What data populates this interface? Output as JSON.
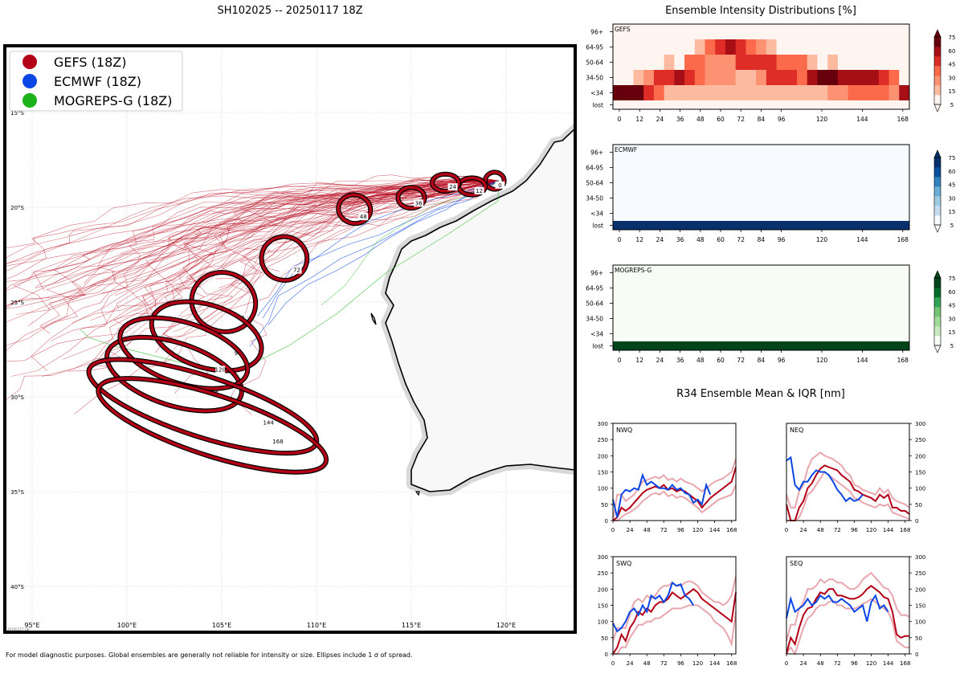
{
  "page": {
    "title": "SH102025 -- 20250117 18Z",
    "footer": "For model diagnostic purposes. Global ensembles are generally not reliable for intensity or size. Ellipses include 1 σ of spread.",
    "small_credit": "20250117 sat"
  },
  "colors": {
    "gefs": "#b40016",
    "ecmwf": "#0a46e6",
    "mogreps": "#1bb21b",
    "land": "#f7f7f7",
    "gefs_iqr": "#e8a6ad"
  },
  "chart_data": [
    {
      "type": "map",
      "name": "track_map",
      "lon_ticks": [
        "95°E",
        "100°E",
        "105°E",
        "110°E",
        "115°E",
        "120°E"
      ],
      "lat_ticks": [
        "15°S",
        "20°S",
        "25°S",
        "30°S",
        "35°S",
        "40°S"
      ],
      "legend": [
        {
          "label": "GEFS (18Z)",
          "color": "#b40016"
        },
        {
          "label": "ECMWF (18Z)",
          "color": "#0a46e6"
        },
        {
          "label": "MOGREPS-G (18Z)",
          "color": "#1bb21b"
        }
      ],
      "ellipses": [
        {
          "hour": "0",
          "lon": 119.4,
          "lat": -18.6,
          "rx": 0.5,
          "ry": 0.45
        },
        {
          "hour": "12",
          "lon": 118.2,
          "lat": -18.9,
          "rx": 0.7,
          "ry": 0.45
        },
        {
          "hour": "24",
          "lon": 116.8,
          "lat": -18.7,
          "rx": 0.7,
          "ry": 0.45
        },
        {
          "hour": "36",
          "lon": 115.0,
          "lat": -19.5,
          "rx": 0.7,
          "ry": 0.55
        },
        {
          "hour": "48",
          "lon": 112.0,
          "lat": -20.1,
          "rx": 0.85,
          "ry": 0.75
        },
        {
          "hour": "72",
          "lon": 108.3,
          "lat": -22.7,
          "rx": 1.2,
          "ry": 1.15
        },
        {
          "hour": "96",
          "lon": 105.1,
          "lat": -25.0,
          "rx": 1.7,
          "ry": 1.55
        },
        {
          "hour": "96",
          "lon": 104.2,
          "lat": -26.8,
          "rx": 3.0,
          "ry": 1.65
        },
        {
          "hour": "144",
          "lon": 102.5,
          "lat": -28.8,
          "rx": 3.7,
          "ry": 1.65
        },
        {
          "hour": "120",
          "lon": 103.0,
          "lat": -27.7,
          "rx": 3.5,
          "ry": 1.6
        },
        {
          "hour": "144",
          "lon": 104.0,
          "lat": -30.5,
          "rx": 6.3,
          "ry": 1.6
        },
        {
          "hour": "168",
          "lon": 104.5,
          "lat": -31.5,
          "rx": 6.3,
          "ry": 1.6
        }
      ]
    },
    {
      "type": "heatmap",
      "name": "GEFS",
      "title": "Ensemble Intensity Distributions [%]",
      "rows": [
        "96+",
        "64-95",
        "50-64",
        "34-50",
        "<34",
        "lost"
      ],
      "x_ticks": [
        0,
        12,
        24,
        36,
        48,
        60,
        72,
        84,
        96,
        120,
        144,
        168
      ],
      "colorbar_ticks": [
        75,
        60,
        45,
        30,
        15,
        5
      ],
      "colorbar_colors": [
        "#fff5f0",
        "#fcbba1",
        "#fc9272",
        "#fb6a4a",
        "#de2d26",
        "#a50f15",
        "#67000d"
      ],
      "values": [
        [
          0,
          0,
          0,
          0,
          0,
          0,
          0,
          0,
          0,
          0,
          0,
          0,
          0,
          0,
          0,
          0,
          0,
          0,
          0,
          0,
          0,
          0,
          0,
          0,
          0,
          0,
          0,
          0,
          0
        ],
        [
          0,
          0,
          0,
          0,
          0,
          0,
          0,
          0,
          10,
          30,
          45,
          60,
          45,
          30,
          20,
          10,
          0,
          0,
          0,
          0,
          0,
          0,
          0,
          0,
          0,
          0,
          0,
          0,
          0
        ],
        [
          0,
          0,
          0,
          0,
          0,
          10,
          0,
          35,
          30,
          20,
          20,
          20,
          50,
          50,
          50,
          50,
          40,
          40,
          30,
          10,
          0,
          10,
          0,
          0,
          0,
          0,
          0,
          0,
          0
        ],
        [
          0,
          0,
          10,
          20,
          55,
          55,
          70,
          55,
          30,
          20,
          20,
          20,
          10,
          10,
          20,
          50,
          50,
          50,
          40,
          60,
          75,
          75,
          60,
          60,
          60,
          60,
          50,
          40,
          0
        ],
        [
          75,
          75,
          75,
          55,
          40,
          5,
          5,
          5,
          5,
          5,
          5,
          5,
          5,
          5,
          5,
          5,
          5,
          5,
          5,
          10,
          10,
          20,
          20,
          30,
          30,
          40,
          40,
          20,
          60
        ],
        [
          0,
          0,
          0,
          0,
          0,
          0,
          0,
          0,
          0,
          0,
          0,
          0,
          0,
          0,
          0,
          0,
          0,
          0,
          0,
          0,
          0,
          0,
          0,
          0,
          0,
          0,
          0,
          0,
          0
        ]
      ]
    },
    {
      "type": "heatmap",
      "name": "ECMWF",
      "rows": [
        "96+",
        "64-95",
        "50-64",
        "34-50",
        "<34",
        "lost"
      ],
      "x_ticks": [
        0,
        12,
        24,
        36,
        48,
        60,
        72,
        84,
        96,
        120,
        144,
        168
      ],
      "colorbar_ticks": [
        75,
        60,
        45,
        30,
        15,
        5
      ],
      "colorbar_colors": [
        "#f7fbff",
        "#c6dbef",
        "#9ecae1",
        "#6baed6",
        "#3182bd",
        "#08519c",
        "#08306b"
      ],
      "values": [
        [
          0
        ],
        [
          0
        ],
        [
          0
        ],
        [
          0
        ],
        [
          0
        ],
        [
          100
        ]
      ]
    },
    {
      "type": "heatmap",
      "name": "MOGREPS-G",
      "rows": [
        "96+",
        "64-95",
        "50-64",
        "34-50",
        "<34",
        "lost"
      ],
      "x_ticks": [
        0,
        12,
        24,
        36,
        48,
        60,
        72,
        84,
        96,
        120,
        144,
        168
      ],
      "colorbar_ticks": [
        75,
        60,
        45,
        30,
        15,
        5
      ],
      "colorbar_colors": [
        "#f7fcf5",
        "#c7e9c0",
        "#a1d99b",
        "#74c476",
        "#31a354",
        "#006d2c",
        "#00441b"
      ],
      "values": [
        [
          0
        ],
        [
          0
        ],
        [
          0
        ],
        [
          0
        ],
        [
          0
        ],
        [
          100
        ]
      ]
    },
    {
      "type": "line",
      "title": "R34 Ensemble Mean & IQR [nm]",
      "x_ticks": [
        0,
        24,
        48,
        72,
        96,
        120,
        144,
        168
      ],
      "y_ticks": [
        0,
        50,
        100,
        150,
        200,
        250,
        300
      ],
      "ylim": [
        0,
        300
      ],
      "xlim": [
        0,
        174
      ],
      "panels": [
        {
          "name": "NWQ",
          "hours": [
            0,
            6,
            12,
            18,
            24,
            30,
            36,
            42,
            48,
            54,
            60,
            66,
            72,
            78,
            84,
            90,
            96,
            102,
            108,
            114,
            120,
            126,
            132,
            138,
            144,
            150,
            156,
            162,
            168,
            174
          ],
          "gefs_mean": [
            0,
            10,
            40,
            30,
            40,
            55,
            70,
            85,
            95,
            100,
            105,
            100,
            110,
            95,
            100,
            90,
            95,
            90,
            80,
            70,
            60,
            40,
            55,
            70,
            80,
            90,
            100,
            110,
            120,
            165
          ],
          "gefs_q1": [
            0,
            0,
            10,
            20,
            25,
            35,
            45,
            60,
            70,
            80,
            85,
            80,
            90,
            75,
            80,
            70,
            75,
            70,
            60,
            50,
            40,
            25,
            35,
            45,
            55,
            65,
            70,
            75,
            80,
            110
          ],
          "gefs_q3": [
            0,
            80,
            80,
            60,
            70,
            80,
            100,
            120,
            125,
            130,
            135,
            130,
            140,
            125,
            130,
            120,
            130,
            120,
            115,
            110,
            100,
            90,
            100,
            110,
            120,
            125,
            130,
            140,
            150,
            190
          ],
          "ecmwf": [
            65,
            10,
            80,
            95,
            90,
            100,
            95,
            140,
            110,
            120,
            110,
            100,
            100,
            95,
            110,
            95,
            100,
            85,
            80,
            55,
            65,
            50,
            110,
            80
          ]
        },
        {
          "name": "NEQ",
          "hours": [
            0,
            6,
            12,
            18,
            24,
            30,
            36,
            42,
            48,
            54,
            60,
            66,
            72,
            78,
            84,
            90,
            96,
            102,
            108,
            114,
            120,
            126,
            132,
            138,
            144,
            150,
            156,
            162,
            168,
            174
          ],
          "gefs_mean": [
            50,
            0,
            0,
            40,
            60,
            100,
            115,
            140,
            160,
            170,
            165,
            160,
            155,
            140,
            130,
            120,
            95,
            90,
            80,
            75,
            70,
            60,
            80,
            70,
            80,
            40,
            40,
            30,
            30,
            20
          ],
          "gefs_q1": [
            0,
            0,
            0,
            10,
            40,
            80,
            90,
            110,
            130,
            150,
            140,
            130,
            120,
            110,
            100,
            90,
            70,
            65,
            55,
            50,
            45,
            40,
            50,
            45,
            50,
            25,
            20,
            15,
            10,
            5
          ],
          "gefs_q3": [
            80,
            40,
            40,
            90,
            110,
            160,
            190,
            200,
            210,
            200,
            195,
            190,
            180,
            170,
            150,
            140,
            110,
            105,
            95,
            90,
            85,
            80,
            100,
            85,
            95,
            70,
            60,
            55,
            50,
            40
          ],
          "ecmwf": [
            185,
            195,
            110,
            95,
            120,
            120,
            140,
            155,
            150,
            150,
            140,
            120,
            95,
            80,
            60,
            70,
            60,
            65,
            80
          ]
        },
        {
          "name": "SWQ",
          "hours": [
            0,
            6,
            12,
            18,
            24,
            30,
            36,
            42,
            48,
            54,
            60,
            66,
            72,
            78,
            84,
            90,
            96,
            102,
            108,
            114,
            120,
            126,
            132,
            138,
            144,
            150,
            156,
            162,
            168,
            174
          ],
          "gefs_mean": [
            0,
            20,
            60,
            40,
            80,
            100,
            130,
            120,
            140,
            130,
            150,
            160,
            160,
            170,
            190,
            180,
            170,
            180,
            190,
            200,
            190,
            170,
            160,
            150,
            140,
            130,
            120,
            110,
            100,
            190
          ],
          "gefs_q1": [
            0,
            0,
            20,
            20,
            50,
            70,
            90,
            90,
            100,
            100,
            110,
            110,
            120,
            130,
            140,
            140,
            140,
            145,
            150,
            150,
            150,
            140,
            130,
            120,
            100,
            90,
            80,
            60,
            30,
            130
          ],
          "gefs_q3": [
            40,
            80,
            80,
            80,
            120,
            160,
            170,
            160,
            180,
            170,
            180,
            200,
            210,
            210,
            220,
            210,
            210,
            220,
            225,
            220,
            210,
            190,
            180,
            170,
            160,
            160,
            150,
            160,
            180,
            240
          ],
          "ecmwf": [
            95,
            70,
            80,
            100,
            130,
            140,
            120,
            150,
            130,
            180,
            170,
            180,
            160,
            180,
            220,
            210,
            215,
            180,
            170,
            150
          ]
        },
        {
          "name": "SEQ",
          "hours": [
            0,
            6,
            12,
            18,
            24,
            30,
            36,
            42,
            48,
            54,
            60,
            66,
            72,
            78,
            84,
            90,
            96,
            102,
            108,
            114,
            120,
            126,
            132,
            138,
            144,
            150,
            156,
            162,
            168,
            174
          ],
          "gefs_mean": [
            0,
            50,
            30,
            80,
            120,
            140,
            145,
            170,
            190,
            185,
            200,
            200,
            180,
            180,
            175,
            170,
            170,
            175,
            185,
            200,
            210,
            200,
            190,
            175,
            170,
            130,
            60,
            50,
            55,
            55
          ],
          "gefs_q1": [
            0,
            20,
            0,
            40,
            80,
            110,
            120,
            140,
            150,
            150,
            160,
            165,
            150,
            150,
            140,
            140,
            140,
            145,
            155,
            160,
            170,
            160,
            150,
            140,
            130,
            100,
            40,
            30,
            20,
            20
          ],
          "gefs_q3": [
            40,
            90,
            90,
            140,
            160,
            200,
            200,
            210,
            230,
            220,
            230,
            230,
            220,
            220,
            210,
            200,
            200,
            210,
            230,
            240,
            250,
            235,
            220,
            205,
            200,
            180,
            140,
            120,
            120,
            115
          ],
          "ecmwf": [
            110,
            170,
            130,
            140,
            150,
            170,
            150,
            160,
            180,
            170,
            180,
            160,
            160,
            170,
            160,
            150,
            130,
            140,
            150,
            100,
            160,
            180,
            140,
            150,
            130
          ]
        }
      ]
    }
  ]
}
